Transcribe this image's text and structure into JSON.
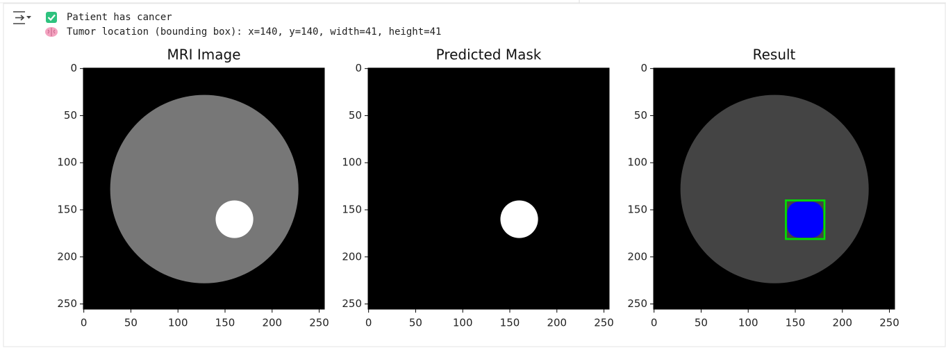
{
  "output": {
    "lines": [
      "Patient has cancer",
      "Tumor location (bounding box): x=140, y=140, width=41, height=41"
    ]
  },
  "figure": {
    "panels": [
      {
        "title": "MRI Image",
        "xlim": [
          -0.5,
          255.5
        ],
        "ylim": [
          255.5,
          -0.5
        ],
        "xticks": [
          0,
          50,
          100,
          150,
          200,
          250
        ],
        "yticks": [
          0,
          50,
          100,
          150,
          200,
          250
        ]
      },
      {
        "title": "Predicted Mask",
        "xlim": [
          -0.5,
          255.5
        ],
        "ylim": [
          255.5,
          -0.5
        ],
        "xticks": [
          0,
          50,
          100,
          150,
          200,
          250
        ],
        "yticks": [
          0,
          50,
          100,
          150,
          200,
          250
        ]
      },
      {
        "title": "Result",
        "xlim": [
          -0.5,
          255.5
        ],
        "ylim": [
          255.5,
          -0.5
        ],
        "xticks": [
          0,
          50,
          100,
          150,
          200,
          250
        ],
        "yticks": [
          0,
          50,
          100,
          150,
          200,
          250
        ]
      }
    ]
  }
}
